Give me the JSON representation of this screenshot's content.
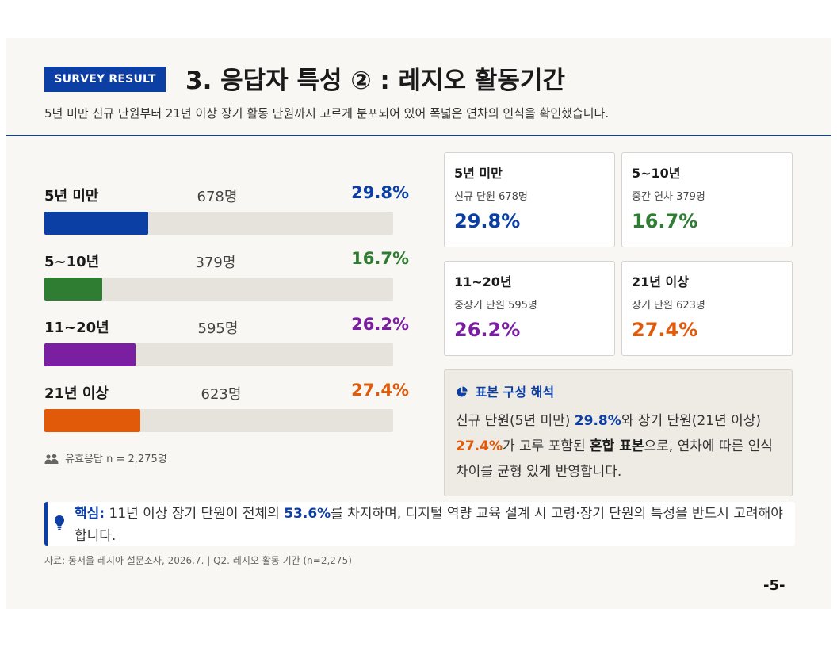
{
  "header": {
    "badge": "SURVEY RESULT",
    "title": "3. 응답자 특성 ② : 레지오 활동기간",
    "subtitle": "5년 미만 신규 단원부터 21년 이상 장기 활동 단원까지 고르게 분포되어 있어 폭넓은 연차의 인식을 확인했습니다."
  },
  "chart_data": {
    "type": "bar",
    "categories": [
      "5년 미만",
      "5~10년",
      "11~20년",
      "21년 이상"
    ],
    "counts": [
      "678명",
      "379명",
      "595명",
      "623명"
    ],
    "value_labels": [
      "29.8%",
      "16.7%",
      "26.2%",
      "27.4%"
    ],
    "values": [
      29.8,
      16.7,
      26.2,
      27.4
    ],
    "xlim": [
      0,
      100
    ],
    "colors": [
      "#0b3fa4",
      "#2e7d32",
      "#7b1fa2",
      "#e05a0a"
    ]
  },
  "note": {
    "icon": "users-icon",
    "text": "유효응답 n = 2,275명"
  },
  "cards": [
    {
      "label": "5년 미만",
      "desc": "신규 단원 678명",
      "pct": "29.8%"
    },
    {
      "label": "5~10년",
      "desc": "중간 연차 379명",
      "pct": "16.7%"
    },
    {
      "label": "11~20년",
      "desc": "중장기 단원 595명",
      "pct": "26.2%"
    },
    {
      "label": "21년 이상",
      "desc": "장기 단원 623명",
      "pct": "27.4%"
    }
  ],
  "interpretation": {
    "icon": "pie-chart-icon",
    "title": "표본 구성 해석",
    "body": {
      "t1": "신규 단원(5년 미만) ",
      "h1": "29.8%",
      "t2": "와 장기 단원(21년 이상) ",
      "h2": "27.4%",
      "t3": "가 고루 포함된 ",
      "h3": "혼합 표본",
      "t4": "으로, 연차에 따른 인식 차이를 균형 있게 반영합니다."
    }
  },
  "callout": {
    "icon": "lightbulb-icon",
    "label": "핵심:",
    "t1": " 11년 이상 장기 단원이 전체의 ",
    "h1": "53.6%",
    "t2": "를 차지하며, 디지털 역량 교육 설계 시 고령·장기 단원의 특성을 반드시 고려해야 합니다."
  },
  "footer": {
    "source": "자료: 동서울 레지아 설문조사, 2026.7.  |  Q2. 레지오 활동 기간 (n=2,275)",
    "page": "-5-"
  }
}
